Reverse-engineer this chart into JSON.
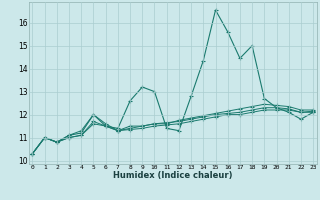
{
  "title": "",
  "xlabel": "Humidex (Indice chaleur)",
  "bg_color": "#cce8ea",
  "grid_color": "#aacdd0",
  "line_color": "#1a7a6e",
  "x_ticks": [
    0,
    1,
    2,
    3,
    4,
    5,
    6,
    7,
    8,
    9,
    10,
    11,
    12,
    13,
    14,
    15,
    16,
    17,
    18,
    19,
    20,
    21,
    22,
    23
  ],
  "y_ticks": [
    10,
    11,
    12,
    13,
    14,
    15,
    16
  ],
  "xlim": [
    -0.3,
    23.3
  ],
  "ylim": [
    9.85,
    16.9
  ],
  "series": [
    [
      10.3,
      11.0,
      10.8,
      11.1,
      11.2,
      12.0,
      11.5,
      11.4,
      12.6,
      13.2,
      13.0,
      11.4,
      11.3,
      12.8,
      14.35,
      16.55,
      15.6,
      14.45,
      15.0,
      12.7,
      12.3,
      12.1,
      11.8,
      12.1
    ],
    [
      10.3,
      11.0,
      10.8,
      11.1,
      11.3,
      12.0,
      11.6,
      11.3,
      11.5,
      11.5,
      11.6,
      11.6,
      11.75,
      11.85,
      11.95,
      12.05,
      12.15,
      12.25,
      12.35,
      12.45,
      12.4,
      12.35,
      12.2,
      12.2
    ],
    [
      10.3,
      11.0,
      10.8,
      11.0,
      11.1,
      11.7,
      11.5,
      11.3,
      11.4,
      11.5,
      11.6,
      11.65,
      11.7,
      11.8,
      11.9,
      12.0,
      12.05,
      12.1,
      12.2,
      12.3,
      12.3,
      12.25,
      12.1,
      12.15
    ],
    [
      10.3,
      11.0,
      10.8,
      11.0,
      11.1,
      11.6,
      11.5,
      11.3,
      11.35,
      11.4,
      11.5,
      11.55,
      11.6,
      11.7,
      11.8,
      11.9,
      12.0,
      12.0,
      12.1,
      12.2,
      12.2,
      12.2,
      12.1,
      12.1
    ]
  ]
}
